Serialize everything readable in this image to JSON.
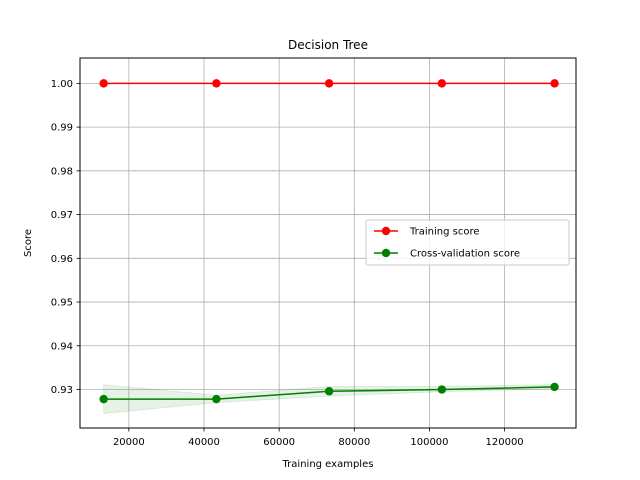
{
  "chart_data": {
    "type": "line",
    "title": "Decision Tree",
    "xlabel": "Training examples",
    "ylabel": "Score",
    "xlim": [
      7000,
      139000
    ],
    "ylim": [
      0.9212,
      1.0058
    ],
    "xticks": [
      20000,
      40000,
      60000,
      80000,
      100000,
      120000
    ],
    "yticks": [
      0.93,
      0.94,
      0.95,
      0.96,
      0.97,
      0.98,
      0.99,
      1.0
    ],
    "xtick_labels": [
      "20000",
      "40000",
      "60000",
      "80000",
      "100000",
      "120000"
    ],
    "ytick_labels": [
      "0.93",
      "0.94",
      "0.95",
      "0.96",
      "0.97",
      "0.98",
      "0.99",
      "1.00"
    ],
    "grid": true,
    "legend_position": "center-right",
    "x": [
      13300,
      43300,
      73300,
      103300,
      133300
    ],
    "series": [
      {
        "name": "Training score",
        "color": "#ff0000",
        "values": [
          1.0,
          1.0,
          1.0,
          1.0,
          1.0
        ],
        "band_lower": [
          1.0,
          1.0,
          1.0,
          1.0,
          1.0
        ],
        "band_upper": [
          1.0,
          1.0,
          1.0,
          1.0,
          1.0
        ]
      },
      {
        "name": "Cross-validation score",
        "color": "#008000",
        "values": [
          0.9278,
          0.9278,
          0.9296,
          0.93,
          0.9306
        ],
        "band_lower": [
          0.9245,
          0.927,
          0.9285,
          0.9295,
          0.9302
        ],
        "band_upper": [
          0.9311,
          0.9287,
          0.9307,
          0.9307,
          0.9311
        ]
      }
    ]
  }
}
